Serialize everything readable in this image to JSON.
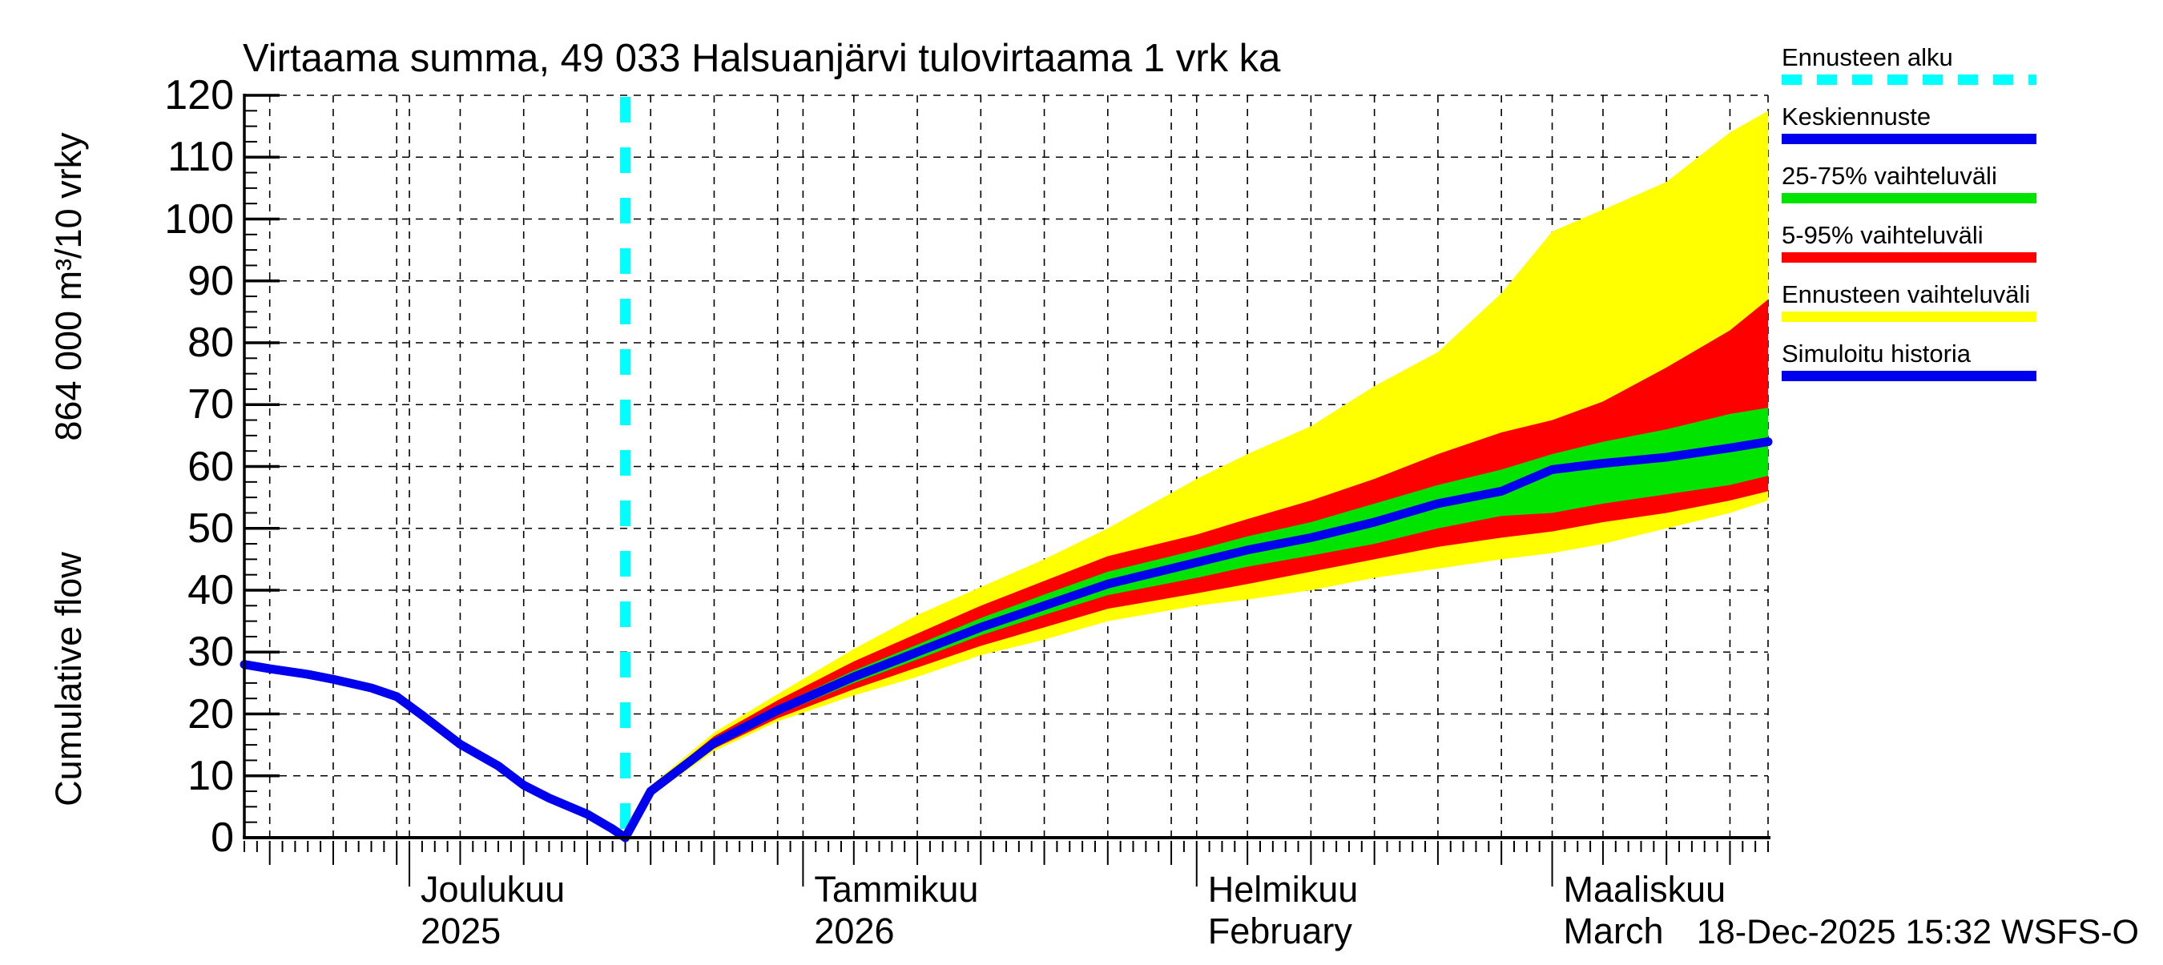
{
  "timestamp": "18-Dec-2025 15:32 WSFS-O",
  "legend": {
    "items": [
      {
        "label": "Ennusteen alku",
        "color": "#00ffff",
        "style": "dashed"
      },
      {
        "label": "Keskiennuste",
        "color": "#0000ee",
        "style": "solid"
      },
      {
        "label": "25-75% vaihteluväli",
        "color": "#00e400",
        "style": "solid"
      },
      {
        "label": "5-95% vaihteluväli",
        "color": "#ff0000",
        "style": "solid"
      },
      {
        "label": "Ennusteen vaihteluväli",
        "color": "#ffff00",
        "style": "solid"
      },
      {
        "label": "Simuloitu historia",
        "color": "#0000ee",
        "style": "solid"
      }
    ]
  },
  "chart_data": {
    "type": "area",
    "title": "Virtaama summa, 49 033 Halsuanjärvi tulovirtaama 1 vrk ka",
    "ylabel_unit": "864 000 m³/10 vrky",
    "ylabel_name": "Cumulative flow",
    "ylim": [
      0,
      120
    ],
    "ytick_step": 10,
    "grid": "dashed; vertical every 5 days, horizontal every 10 units",
    "x_range": [
      "2025-11-18",
      "2026-03-18"
    ],
    "forecast_start": "2025-12-18",
    "x_month_labels": [
      {
        "date": "2025-12-01",
        "label": "Joulukuu",
        "sublabel": "2025"
      },
      {
        "date": "2026-01-01",
        "label": "Tammikuu",
        "sublabel": "2026"
      },
      {
        "date": "2026-02-01",
        "label": "Helmikuu",
        "sublabel": "February"
      },
      {
        "date": "2026-03-01",
        "label": "Maaliskuu",
        "sublabel": "March"
      }
    ],
    "series": [
      {
        "name": "Ennusteen vaihteluväli",
        "type": "band",
        "color": "#ffff00",
        "x": [
          "2025-12-18",
          "2025-12-20",
          "2025-12-25",
          "2025-12-30",
          "2026-01-05",
          "2026-01-10",
          "2026-01-15",
          "2026-01-20",
          "2026-01-25",
          "2026-02-01",
          "2026-02-05",
          "2026-02-10",
          "2026-02-15",
          "2026-02-20",
          "2026-02-25",
          "2026-03-01",
          "2026-03-05",
          "2026-03-10",
          "2026-03-15",
          "2026-03-18"
        ],
        "high": [
          0,
          8.4,
          17,
          23.2,
          30.5,
          36,
          40.5,
          45,
          50,
          58,
          62,
          66.5,
          73,
          78.5,
          88,
          98,
          101.5,
          106,
          114,
          117.5
        ],
        "low": [
          0,
          6.7,
          14,
          18.8,
          23,
          26,
          29.5,
          32,
          35,
          37.5,
          38.5,
          40,
          42,
          43.5,
          45,
          46,
          47.5,
          50,
          52.5,
          54.5
        ]
      },
      {
        "name": "5-95% vaihteluväli",
        "type": "band",
        "color": "#ff0000",
        "x": [
          "2025-12-18",
          "2025-12-20",
          "2025-12-25",
          "2025-12-30",
          "2026-01-05",
          "2026-01-10",
          "2026-01-15",
          "2026-01-20",
          "2026-01-25",
          "2026-02-01",
          "2026-02-05",
          "2026-02-10",
          "2026-02-15",
          "2026-02-20",
          "2026-02-25",
          "2026-03-01",
          "2026-03-05",
          "2026-03-10",
          "2026-03-15",
          "2026-03-18"
        ],
        "high": [
          0,
          8.1,
          16.4,
          22.2,
          28.5,
          33,
          37.5,
          41.5,
          45.5,
          49,
          51.5,
          54.5,
          58,
          62,
          65.5,
          67.5,
          70.5,
          76,
          82,
          87
        ],
        "low": [
          0,
          6.9,
          14.4,
          19.3,
          24,
          27.5,
          31,
          34,
          37,
          39.5,
          41,
          43,
          45,
          47,
          48.5,
          49.5,
          51,
          52.5,
          54.5,
          56
        ]
      },
      {
        "name": "25-75% vaihteluväli",
        "type": "band",
        "color": "#00e400",
        "x": [
          "2025-12-18",
          "2025-12-20",
          "2025-12-25",
          "2025-12-30",
          "2026-01-05",
          "2026-01-10",
          "2026-01-15",
          "2026-01-20",
          "2026-01-25",
          "2026-02-01",
          "2026-02-05",
          "2026-02-10",
          "2026-02-15",
          "2026-02-20",
          "2026-02-25",
          "2026-03-01",
          "2026-03-05",
          "2026-03-10",
          "2026-03-15",
          "2026-03-18"
        ],
        "high": [
          0,
          7.8,
          15.8,
          21.3,
          27,
          31.2,
          35.5,
          39.3,
          43,
          46.5,
          48.7,
          51,
          54,
          57,
          59.5,
          62,
          64,
          66,
          68.5,
          69.5
        ],
        "low": [
          0,
          7.2,
          14.8,
          19.9,
          25,
          28.8,
          32.7,
          36,
          39.2,
          42,
          43.8,
          45.6,
          47.5,
          50,
          52,
          52.5,
          54,
          55.5,
          57,
          58.5
        ]
      },
      {
        "name": "Ennusteen alku",
        "type": "vline",
        "color": "#00ffff",
        "x": "2025-12-18"
      },
      {
        "name": "Keskiennuste",
        "type": "line",
        "color": "#0000ee",
        "x": [
          "2025-12-18",
          "2025-12-20",
          "2025-12-25",
          "2025-12-30",
          "2026-01-05",
          "2026-01-10",
          "2026-01-15",
          "2026-01-20",
          "2026-01-25",
          "2026-02-01",
          "2026-02-05",
          "2026-02-10",
          "2026-02-15",
          "2026-02-20",
          "2026-02-25",
          "2026-03-01",
          "2026-03-05",
          "2026-03-10",
          "2026-03-15",
          "2026-03-18"
        ],
        "y": [
          0,
          7.5,
          15.3,
          20.6,
          26,
          30,
          34,
          37.5,
          41,
          44.5,
          46.5,
          48.5,
          51,
          54,
          56,
          59.5,
          60.5,
          61.5,
          63,
          64
        ]
      },
      {
        "name": "Simuloitu historia",
        "type": "line",
        "color": "#0000ee",
        "x": [
          "2025-11-18",
          "2025-11-20",
          "2025-11-23",
          "2025-11-25",
          "2025-11-28",
          "2025-11-30",
          "2025-12-02",
          "2025-12-05",
          "2025-12-08",
          "2025-12-10",
          "2025-12-12",
          "2025-12-15",
          "2025-12-17",
          "2025-12-18"
        ],
        "y": [
          28,
          27.3,
          26.4,
          25.6,
          24.2,
          22.8,
          19.8,
          15.1,
          11.6,
          8.5,
          6.4,
          3.8,
          1.4,
          0
        ]
      }
    ]
  }
}
